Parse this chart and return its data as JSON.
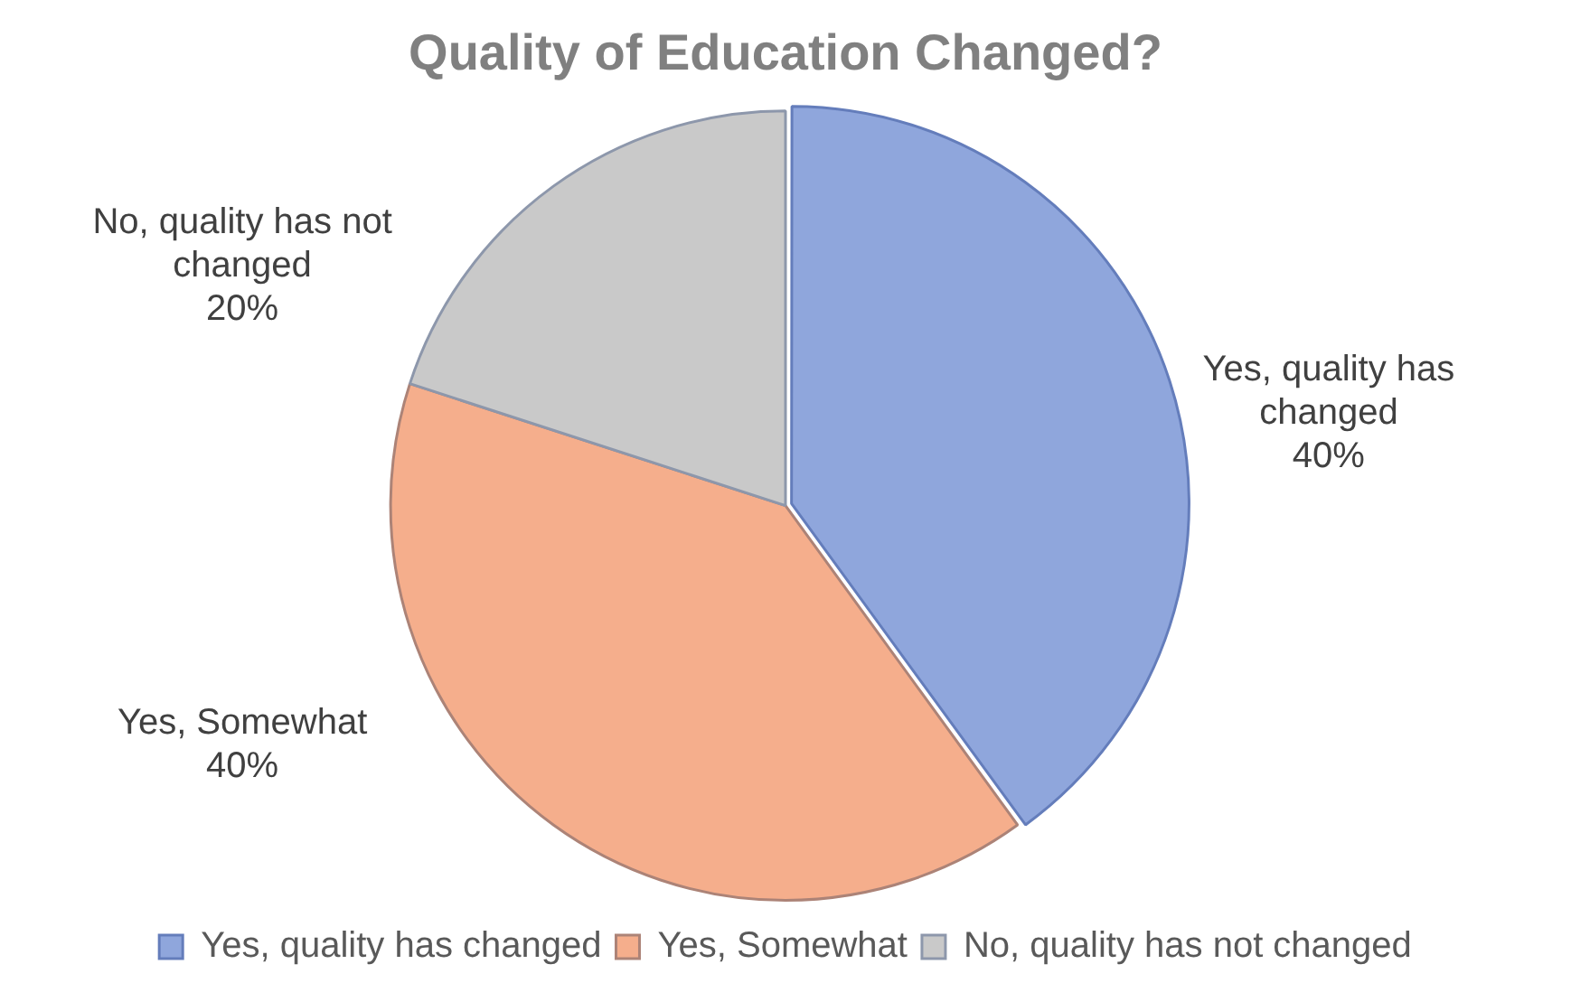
{
  "chart_data": {
    "type": "pie",
    "title": "Quality of Education Changed?",
    "categories": [
      "Yes, quality has changed",
      "Yes, Somewhat",
      "No, quality has not changed"
    ],
    "values": [
      40,
      40,
      20
    ],
    "colors": [
      "#8fa6dc",
      "#f5ae8c",
      "#c9c9c9"
    ],
    "value_labels": [
      "40%",
      "40%",
      "20%"
    ],
    "legend": "bottom"
  }
}
